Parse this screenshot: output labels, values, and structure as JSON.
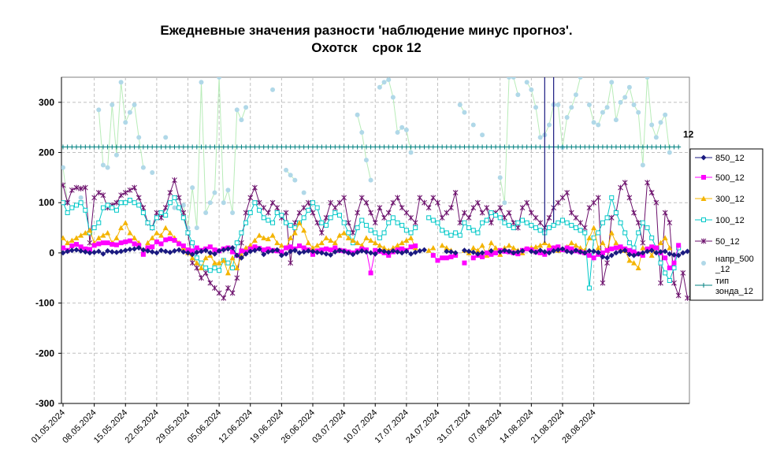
{
  "title_line1": "Ежедневные значения разности 'наблюдение минус прогноз'.",
  "title_line2": "Охотск    срок 12",
  "chart_data": {
    "type": "line",
    "ylim": [
      -300,
      350
    ],
    "yticks": [
      -300,
      -200,
      -100,
      0,
      100,
      200,
      300
    ],
    "grid": true,
    "legend_position": "right",
    "x_start": "01.05.2024",
    "x_end": "04.09.2024",
    "x_tick_labels": [
      "01.05.2024",
      "08.05.2024",
      "15.05.2024",
      "22.05.2024",
      "29.05.2024",
      "05.06.2024",
      "12.06.2024",
      "19.06.2024",
      "26.06.2024",
      "03.07.2024",
      "10.07.2024",
      "17.07.2024",
      "24.07.2024",
      "31.07.2024",
      "07.08.2024",
      "14.08.2024",
      "21.08.2024",
      "28.08.2024"
    ],
    "annotation": "12",
    "series": [
      {
        "name": "850_12",
        "color": "#1a1a80",
        "marker": "diamond",
        "values": [
          0,
          3,
          5,
          6,
          4,
          2,
          0,
          1,
          3,
          -2,
          4,
          2,
          1,
          3,
          5,
          7,
          8,
          10,
          6,
          4,
          2,
          0,
          5,
          3,
          1,
          4,
          6,
          2,
          0,
          -3,
          1,
          3,
          5,
          0,
          -2,
          4,
          6,
          8,
          10,
          -5,
          -10,
          -2,
          3,
          5,
          8,
          -3,
          2,
          4,
          6,
          -5,
          -2,
          3,
          5,
          0,
          2,
          4,
          3,
          1,
          0,
          -2,
          -4,
          2,
          5,
          3,
          0,
          -3,
          1,
          4,
          2,
          0,
          -2,
          5,
          3,
          1,
          4,
          2,
          0,
          3,
          -2,
          1,
          4,
          6,
          null,
          null,
          null,
          null,
          3,
          2,
          0,
          null,
          5,
          3,
          1,
          -2,
          0,
          null,
          4,
          null,
          2,
          5,
          3,
          0,
          2,
          4,
          null,
          3,
          1,
          5,
          2,
          0,
          4,
          6,
          8,
          3,
          1,
          5,
          2,
          0,
          4,
          3,
          1,
          -8,
          -10,
          -5,
          0,
          3,
          5,
          -3,
          -5,
          -2,
          0,
          3,
          5,
          0,
          2,
          3,
          -2,
          -4,
          -5,
          0,
          3
        ]
      },
      {
        "name": "500_12",
        "color": "#ff00ff",
        "marker": "square",
        "values": [
          10,
          5,
          14,
          17,
          12,
          8,
          7,
          15,
          18,
          20,
          20,
          17,
          16,
          20,
          22,
          24,
          18,
          15,
          -3,
          10,
          12,
          22,
          18,
          26,
          28,
          25,
          18,
          14,
          6,
          4,
          10,
          5,
          8,
          12,
          6,
          4,
          8,
          10,
          2,
          -5,
          4,
          2,
          8,
          12,
          9,
          6,
          8,
          5,
          4,
          2,
          10,
          12,
          8,
          14,
          10,
          6,
          -3,
          4,
          6,
          8,
          6,
          10,
          5,
          4,
          2,
          0,
          4,
          8,
          6,
          -40,
          5,
          3,
          0,
          -5,
          2,
          6,
          8,
          5,
          12,
          14,
          null,
          null,
          null,
          -5,
          -15,
          -10,
          -10,
          -8,
          -5,
          null,
          -20,
          null,
          -10,
          -5,
          -8,
          0,
          -3,
          0,
          5,
          3,
          2,
          0,
          -2,
          5,
          8,
          6,
          2,
          0,
          -3,
          5,
          10,
          12,
          6,
          10,
          8,
          4,
          2,
          0,
          -5,
          -10,
          -3,
          0,
          5,
          8,
          10,
          12,
          8,
          5,
          2,
          -2,
          -5,
          8,
          12,
          10,
          0,
          -10,
          -30,
          -20,
          15
        ]
      },
      {
        "name": "300_12",
        "color": "#f4b400",
        "marker": "triangle",
        "values": [
          30,
          20,
          25,
          30,
          35,
          40,
          45,
          20,
          30,
          35,
          40,
          20,
          30,
          50,
          60,
          40,
          30,
          20,
          0,
          20,
          30,
          40,
          35,
          50,
          40,
          30,
          20,
          10,
          0,
          -10,
          -20,
          -30,
          -10,
          -5,
          -20,
          -20,
          -15,
          -40,
          -10,
          -30,
          -5,
          10,
          15,
          25,
          35,
          30,
          28,
          35,
          20,
          15,
          10,
          30,
          40,
          60,
          45,
          20,
          10,
          15,
          20,
          30,
          25,
          20,
          35,
          40,
          30,
          25,
          20,
          15,
          30,
          25,
          20,
          15,
          10,
          5,
          10,
          15,
          20,
          25,
          30,
          10,
          null,
          null,
          5,
          10,
          null,
          15,
          10,
          5,
          0,
          null,
          5,
          0,
          10,
          5,
          15,
          -5,
          20,
          10,
          -3,
          10,
          15,
          10,
          5,
          0,
          8,
          10,
          12,
          15,
          20,
          15,
          10,
          5,
          8,
          12,
          20,
          15,
          10,
          5,
          30,
          50,
          10,
          20,
          5,
          40,
          20,
          10,
          5,
          -15,
          -20,
          -30,
          10,
          8,
          -5,
          10,
          20,
          30,
          10
        ]
      },
      {
        "name": "100_12",
        "color": "#00c8c8",
        "marker": "square-open",
        "values": [
          100,
          80,
          90,
          95,
          100,
          85,
          40,
          50,
          60,
          90,
          95,
          90,
          85,
          100,
          100,
          105,
          100,
          95,
          80,
          60,
          50,
          70,
          80,
          75,
          100,
          110,
          90,
          70,
          40,
          20,
          -10,
          -20,
          -30,
          -35,
          -30,
          -35,
          -15,
          -20,
          -30,
          20,
          40,
          60,
          80,
          100,
          85,
          70,
          65,
          60,
          80,
          75,
          60,
          55,
          50,
          60,
          70,
          85,
          100,
          90,
          60,
          55,
          70,
          80,
          75,
          60,
          40,
          20,
          50,
          65,
          55,
          45,
          40,
          30,
          40,
          60,
          70,
          60,
          55,
          45,
          40,
          50,
          null,
          null,
          70,
          65,
          60,
          45,
          40,
          35,
          40,
          35,
          60,
          50,
          45,
          40,
          60,
          65,
          80,
          75,
          70,
          60,
          55,
          50,
          60,
          65,
          60,
          55,
          50,
          45,
          40,
          50,
          55,
          60,
          65,
          60,
          55,
          50,
          45,
          40,
          -70,
          30,
          40,
          60,
          70,
          110,
          80,
          60,
          40,
          20,
          10,
          40,
          60,
          50,
          30,
          10,
          -20,
          -40,
          -55,
          -30,
          10
        ]
      },
      {
        "name": "50_12",
        "color": "#6b0f6b",
        "marker": "star",
        "values": [
          135,
          100,
          125,
          130,
          128,
          130,
          20,
          110,
          120,
          115,
          90,
          95,
          100,
          115,
          120,
          125,
          130,
          110,
          90,
          60,
          50,
          80,
          70,
          90,
          120,
          145,
          110,
          80,
          40,
          -20,
          -30,
          -50,
          -40,
          -60,
          -70,
          -80,
          -90,
          -70,
          -80,
          -50,
          20,
          80,
          110,
          130,
          100,
          90,
          80,
          100,
          90,
          70,
          80,
          -20,
          60,
          80,
          90,
          100,
          80,
          60,
          40,
          70,
          100,
          90,
          100,
          110,
          60,
          40,
          80,
          110,
          100,
          80,
          60,
          90,
          70,
          80,
          100,
          110,
          90,
          80,
          70,
          60,
          110,
          100,
          90,
          110,
          100,
          70,
          80,
          90,
          120,
          60,
          80,
          70,
          90,
          100,
          80,
          90,
          60,
          80,
          90,
          70,
          80,
          60,
          50,
          90,
          100,
          80,
          70,
          60,
          50,
          70,
          90,
          100,
          110,
          120,
          80,
          70,
          60,
          50,
          90,
          100,
          110,
          -60,
          -20,
          70,
          80,
          130,
          140,
          110,
          80,
          60,
          20,
          140,
          120,
          100,
          -60,
          80,
          60,
          -60,
          -85,
          -40,
          -90
        ]
      },
      {
        "name": "напр_500_12",
        "color": "#b0d8e8",
        "marker": "circle",
        "values": [
          170,
          100,
          null,
          null,
          110,
          null,
          null,
          null,
          285,
          175,
          170,
          295,
          195,
          340,
          260,
          280,
          295,
          230,
          170,
          null,
          160,
          null,
          null,
          230,
          null,
          90,
          null,
          95,
          50,
          130,
          50,
          340,
          80,
          100,
          120,
          350,
          100,
          125,
          80,
          285,
          265,
          290,
          null,
          null,
          null,
          null,
          null,
          325,
          null,
          null,
          165,
          155,
          145,
          null,
          120,
          null,
          null,
          null,
          null,
          null,
          null,
          null,
          null,
          null,
          null,
          null,
          275,
          240,
          185,
          145,
          null,
          330,
          340,
          345,
          310,
          240,
          250,
          245,
          200,
          null,
          null,
          null,
          null,
          null,
          null,
          null,
          null,
          null,
          null,
          295,
          280,
          null,
          255,
          null,
          235,
          null,
          null,
          null,
          150,
          100,
          350,
          350,
          315,
          null,
          340,
          325,
          290,
          230,
          235,
          255,
          295,
          295,
          210,
          270,
          290,
          315,
          350,
          null,
          295,
          260,
          255,
          280,
          290,
          340,
          265,
          300,
          310,
          330,
          295,
          280,
          175,
          350,
          255,
          230,
          260,
          275,
          200,
          null
        ]
      },
      {
        "name": "тип\nзонда_12",
        "color": "#008080",
        "marker": "plus",
        "values": [
          211,
          211,
          211,
          211,
          211,
          211,
          211,
          211,
          211,
          211,
          211,
          211,
          211,
          211,
          211,
          211,
          211,
          211,
          211,
          211,
          211,
          211,
          211,
          211,
          211,
          211,
          211,
          211,
          211,
          211,
          211,
          211,
          211,
          211,
          211,
          211,
          211,
          211,
          211,
          211,
          211,
          211,
          211,
          211,
          211,
          211,
          211,
          211,
          211,
          211,
          211,
          211,
          211,
          211,
          211,
          211,
          211,
          211,
          211,
          211,
          211,
          211,
          211,
          211,
          211,
          211,
          211,
          211,
          211,
          211,
          211,
          211,
          211,
          211,
          211,
          211,
          211,
          211,
          211,
          211,
          211,
          211,
          211,
          211,
          211,
          211,
          211,
          211,
          211,
          211,
          211,
          211,
          211,
          211,
          211,
          211,
          211,
          211,
          211,
          211,
          211,
          211,
          211,
          211,
          211,
          211,
          211,
          211,
          211,
          211,
          211,
          211,
          211,
          211,
          211,
          211,
          211,
          211,
          211,
          211,
          211,
          211,
          211,
          211,
          211,
          211,
          211,
          211,
          211,
          211,
          211,
          211,
          211,
          211,
          211,
          211,
          211,
          211,
          211
        ]
      }
    ]
  }
}
